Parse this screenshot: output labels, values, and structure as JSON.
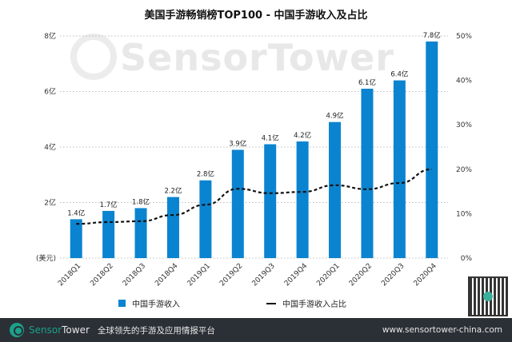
{
  "chart_data": {
    "type": "bar",
    "title": "美国手游畅销榜TOP100 - 中国手游收入及占比",
    "categories": [
      "2018Q1",
      "2018Q2",
      "2018Q3",
      "2018Q4",
      "2019Q1",
      "2019Q2",
      "2019Q3",
      "2019Q4",
      "2020Q1",
      "2020Q2",
      "2020Q3",
      "2020Q4"
    ],
    "series": [
      {
        "name": "中国手游收入",
        "type": "bar",
        "axis": "left",
        "values": [
          1.4,
          1.7,
          1.8,
          2.2,
          2.8,
          3.9,
          4.1,
          4.2,
          4.9,
          6.1,
          6.4,
          7.8
        ],
        "labels": [
          "1.4亿",
          "1.7亿",
          "1.8亿",
          "2.2亿",
          "2.8亿",
          "3.9亿",
          "4.1亿",
          "4.2亿",
          "4.9亿",
          "6.1亿",
          "6.4亿",
          "7.8亿"
        ],
        "color": "#0a84d0"
      },
      {
        "name": "中国手游收入占比",
        "type": "line",
        "axis": "right",
        "style": "dashed",
        "values": [
          7.7,
          8.1,
          8.3,
          9.7,
          12.0,
          15.6,
          14.6,
          14.9,
          16.4,
          15.5,
          16.9,
          20.0
        ],
        "color": "#111111"
      }
    ],
    "ylabel": "(美元)",
    "ylim": [
      0,
      8
    ],
    "y_ticks": [
      "(美元)",
      "2亿",
      "4亿",
      "6亿",
      "8亿"
    ],
    "y2lim": [
      0,
      50
    ],
    "y2_ticks": [
      "0%",
      "10%",
      "20%",
      "30%",
      "40%",
      "50%"
    ],
    "grid": true,
    "legend": "bottom"
  },
  "watermark": "SensorTower",
  "footer": {
    "brand_a": "Sensor",
    "brand_b": "Tower",
    "tagline": "全球领先的手游及应用情报平台",
    "url": "www.sensortower-china.com"
  }
}
